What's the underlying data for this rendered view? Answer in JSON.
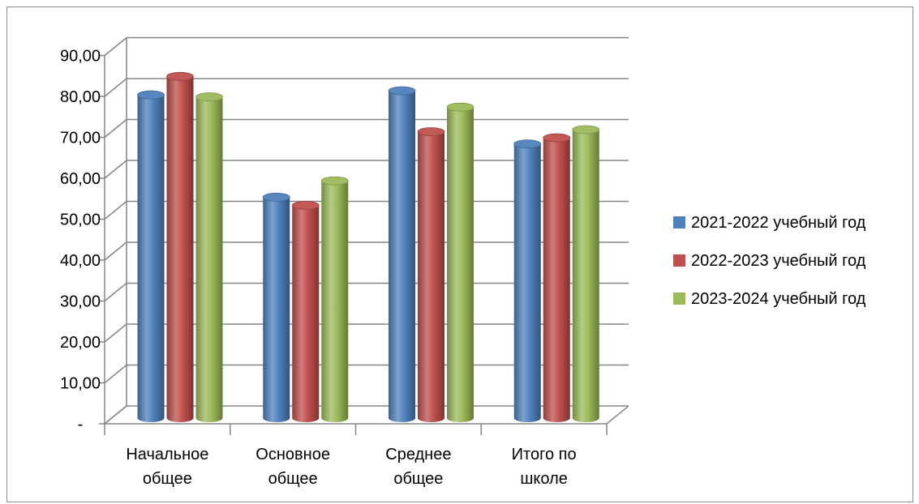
{
  "chart_data": {
    "type": "bar",
    "categories": [
      [
        "Начальное",
        "общее"
      ],
      [
        "Основное",
        "общее"
      ],
      [
        "Среднее",
        "общее"
      ],
      [
        "Итого по",
        "школе"
      ]
    ],
    "series": [
      {
        "name": "2021-2022 учебный год",
        "color": "#4f81bd",
        "values": [
          79,
          54,
          80,
          67
        ]
      },
      {
        "name": "2022-2023 учебный год",
        "color": "#c0504d",
        "values": [
          83.5,
          52,
          70,
          68.5
        ]
      },
      {
        "name": "2023-2024 учебный год",
        "color": "#9bbb59",
        "values": [
          78.5,
          58,
          76,
          70.5
        ]
      }
    ],
    "y_ticks": [
      "-",
      "10,00",
      "20,00",
      "30,00",
      "40,00",
      "50,00",
      "60,00",
      "70,00",
      "80,00",
      "90,00"
    ],
    "ylim": [
      0,
      90
    ],
    "grid": true,
    "legend_position": "right",
    "style": "3d-cylinder"
  }
}
